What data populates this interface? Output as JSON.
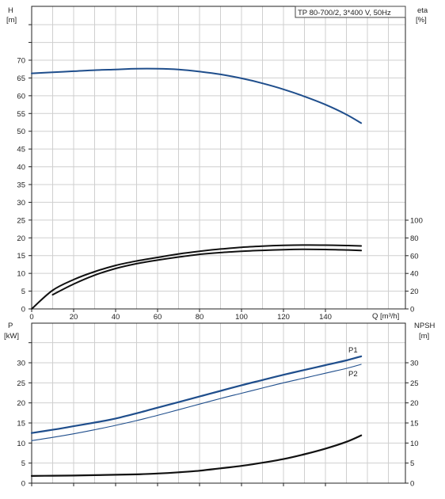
{
  "chart_data": [
    {
      "type": "line",
      "title": "TP 80-700/2, 3*400 V, 50Hz",
      "xlabel": "Q [m³/h]",
      "x_ticks": [
        "0",
        "20",
        "40",
        "60",
        "80",
        "100",
        "120",
        "140"
      ],
      "xlim": [
        0,
        180
      ],
      "left_axis": {
        "label_line1": "H",
        "label_line2": "[m]",
        "ylim": [
          0,
          75
        ],
        "ticks": [
          "0",
          "5",
          "10",
          "15",
          "20",
          "25",
          "30",
          "35",
          "40",
          "45",
          "50",
          "55",
          "60",
          "65",
          "70"
        ]
      },
      "right_axis": {
        "label_line1": "eta",
        "label_line2": "[%]",
        "ylim": [
          0,
          100
        ],
        "ticks": [
          "0",
          "20",
          "40",
          "60",
          "80",
          "100"
        ]
      },
      "grid": true,
      "series": [
        {
          "axis": "left",
          "color": "#1f4e8c",
          "x": [
            0,
            10,
            20,
            30,
            40,
            50,
            60,
            70,
            80,
            90,
            100,
            110,
            120,
            130,
            140,
            150,
            157
          ],
          "y": [
            66.3,
            66.6,
            66.9,
            67.2,
            67.4,
            67.6,
            67.6,
            67.4,
            66.8,
            66.0,
            64.9,
            63.5,
            61.8,
            59.8,
            57.5,
            54.7,
            52.3
          ]
        },
        {
          "axis": "right",
          "color": "#111111",
          "x": [
            0,
            10,
            20,
            30,
            40,
            50,
            60,
            70,
            80,
            90,
            100,
            110,
            120,
            130,
            140,
            150,
            157
          ],
          "y": [
            0,
            21,
            33,
            42,
            49,
            54,
            58,
            62,
            65,
            67.5,
            69.5,
            70.8,
            71.6,
            72,
            71.9,
            71.4,
            71
          ]
        },
        {
          "axis": "right",
          "color": "#111111",
          "x": [
            10,
            20,
            30,
            40,
            50,
            60,
            70,
            80,
            90,
            100,
            110,
            120,
            130,
            140,
            150,
            157
          ],
          "y": [
            16,
            28,
            38,
            45.5,
            51,
            55,
            58.5,
            61.5,
            63.5,
            65,
            66,
            66.8,
            67.2,
            67,
            66.4,
            65.8
          ]
        }
      ]
    },
    {
      "type": "line",
      "xlim": [
        0,
        180
      ],
      "left_axis": {
        "label_line1": "P",
        "label_line2": "[kW]",
        "ylim": [
          0,
          35
        ],
        "ticks": [
          "0",
          "5",
          "10",
          "15",
          "20",
          "25",
          "30"
        ]
      },
      "right_axis": {
        "label_line1": "NPSH",
        "label_line2": "[m]",
        "ylim": [
          0,
          35
        ],
        "ticks": [
          "0",
          "5",
          "10",
          "15",
          "20",
          "25",
          "30"
        ]
      },
      "grid": true,
      "series": [
        {
          "name": "P1",
          "axis": "left",
          "color": "#1f4e8c",
          "width": 2.2,
          "x": [
            0,
            10,
            20,
            30,
            40,
            50,
            60,
            70,
            80,
            90,
            100,
            110,
            120,
            130,
            140,
            150,
            157
          ],
          "y": [
            12.5,
            13.3,
            14.2,
            15.1,
            16.1,
            17.4,
            18.8,
            20.2,
            21.6,
            23.0,
            24.4,
            25.7,
            27.0,
            28.2,
            29.4,
            30.6,
            31.6
          ]
        },
        {
          "name": "P2",
          "axis": "left",
          "color": "#1f4e8c",
          "width": 1.1,
          "x": [
            0,
            10,
            20,
            30,
            40,
            50,
            60,
            70,
            80,
            90,
            100,
            110,
            120,
            130,
            140,
            150,
            157
          ],
          "y": [
            10.6,
            11.4,
            12.3,
            13.3,
            14.4,
            15.6,
            16.9,
            18.3,
            19.7,
            21.1,
            22.4,
            23.7,
            25.0,
            26.2,
            27.4,
            28.6,
            29.6
          ]
        },
        {
          "axis": "right",
          "color": "#111111",
          "width": 2.2,
          "x": [
            0,
            10,
            20,
            30,
            40,
            50,
            60,
            70,
            80,
            90,
            100,
            110,
            120,
            130,
            140,
            150,
            157
          ],
          "y": [
            1.8,
            1.85,
            1.9,
            2.0,
            2.1,
            2.2,
            2.4,
            2.7,
            3.1,
            3.7,
            4.3,
            5.1,
            6.0,
            7.2,
            8.6,
            10.3,
            11.9
          ]
        }
      ]
    }
  ]
}
